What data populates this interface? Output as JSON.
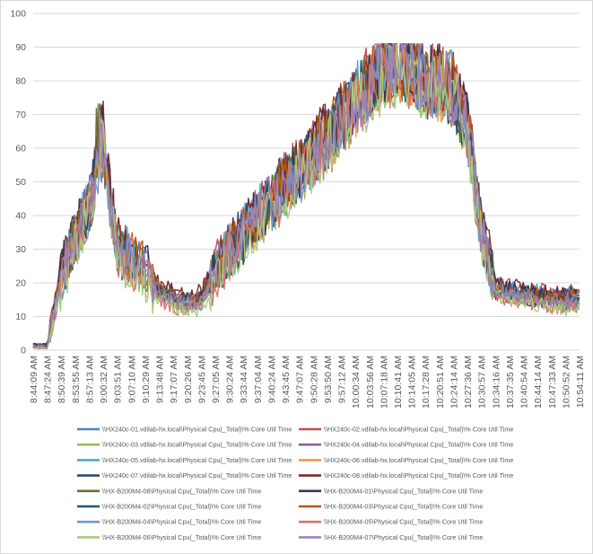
{
  "chart_data": {
    "type": "line",
    "title": "",
    "xlabel": "",
    "ylabel": "",
    "ylim": [
      0,
      100
    ],
    "yticks": [
      0,
      10,
      20,
      30,
      40,
      50,
      60,
      70,
      80,
      90,
      100
    ],
    "grid": true,
    "legend_position": "bottom",
    "x_tick_labels": [
      "8:44:09 AM",
      "8:47:24 AM",
      "8:50:39 AM",
      "8:53:55 AM",
      "8:57:13 AM",
      "9:00:32 AM",
      "9:03:51 AM",
      "9:07:10 AM",
      "9:10:29 AM",
      "9:13:48 AM",
      "9:17:07 AM",
      "9:20:26 AM",
      "9:23:45 AM",
      "9:27:05 AM",
      "9:30:24 AM",
      "9:33:44 AM",
      "9:37:04 AM",
      "9:40:24 AM",
      "9:43:45 AM",
      "9:47:07 AM",
      "9:50:28 AM",
      "9:53:50 AM",
      "9:57:12 AM",
      "10:00:34 AM",
      "10:03:56 AM",
      "10:07:18 AM",
      "10:10:41 AM",
      "10:14:05 AM",
      "10:17:28 AM",
      "10:20:51 AM",
      "10:24:14 AM",
      "10:27:36 AM",
      "10:30:57 AM",
      "10:34:16 AM",
      "10:37:35 AM",
      "10:40:54 AM",
      "10:44:14 AM",
      "10:47:33 AM",
      "10:50:52 AM",
      "10:54:11 AM"
    ],
    "profile": [
      1,
      1,
      22,
      33,
      43,
      60,
      30,
      27,
      24,
      17,
      15,
      14,
      15,
      23,
      30,
      34,
      39,
      44,
      49,
      53,
      58,
      63,
      68,
      74,
      79,
      83,
      85,
      83,
      80,
      79,
      77,
      66,
      35,
      18,
      17,
      16,
      16,
      15,
      15,
      15
    ],
    "series": [
      {
        "name": "\\\\HX240c-01.vdilab-hx.local\\Physical Cpu(_Total)\\% Core Util Time",
        "color": "#4f81bd",
        "offset": 0
      },
      {
        "name": "\\\\HX240c-02.vdilab-hx.local\\Physical Cpu(_Total)\\% Core Util Time",
        "color": "#c0504d",
        "offset": 3
      },
      {
        "name": "\\\\HX240c-03.vdilab-hx.local\\Physical Cpu(_Total)\\% Core Util Time",
        "color": "#9bbb59",
        "offset": -2
      },
      {
        "name": "\\\\HX240c-04.vdilab-hx.local\\Physical Cpu(_Total)\\% Core Util Time",
        "color": "#8064a2",
        "offset": 1
      },
      {
        "name": "\\\\HX240c-05.vdilab-hx.local\\Physical Cpu(_Total)\\% Core Util Time",
        "color": "#4bacc6",
        "offset": 2
      },
      {
        "name": "\\\\HX240c-06.vdilab-hx.local\\Physical Cpu(_Total)\\% Core Util Time",
        "color": "#f79646",
        "offset": -1
      },
      {
        "name": "\\\\HX240c-07.vdilab-hx.local\\Physical Cpu(_Total)\\% Core Util Time",
        "color": "#2c4d75",
        "offset": 1
      },
      {
        "name": "\\\\HX240c-08.vdilab-hx.local\\Physical Cpu(_Total)\\% Core Util Time",
        "color": "#772c2a",
        "offset": 4
      },
      {
        "name": "\\\\HX-B200M4-08\\Physical Cpu(_Total)\\% Core Util Time",
        "color": "#5f7530",
        "offset": 0
      },
      {
        "name": "\\\\HX-B200M4-01\\Physical Cpu(_Total)\\% Core Util Time",
        "color": "#403152",
        "offset": 2
      },
      {
        "name": "\\\\HX-B200M4-02\\Physical Cpu(_Total)\\% Core Util Time",
        "color": "#215968",
        "offset": -1
      },
      {
        "name": "\\\\HX-B200M4-03\\Physical Cpu(_Total)\\% Core Util Time",
        "color": "#b65708",
        "offset": 1
      },
      {
        "name": "\\\\HX-B200M4-04\\Physical Cpu(_Total)\\% Core Util Time",
        "color": "#729aca",
        "offset": -2
      },
      {
        "name": "\\\\HX-B200M4-05\\Physical Cpu(_Total)\\% Core Util Time",
        "color": "#d9726f",
        "offset": -3
      },
      {
        "name": "\\\\HX-B200M4-06\\Physical Cpu(_Total)\\% Core Util Time",
        "color": "#afc97a",
        "offset": -4
      },
      {
        "name": "\\\\HX-B200M4-07\\Physical Cpu(_Total)\\% Core Util Time",
        "color": "#9983b5",
        "offset": 0
      }
    ]
  }
}
